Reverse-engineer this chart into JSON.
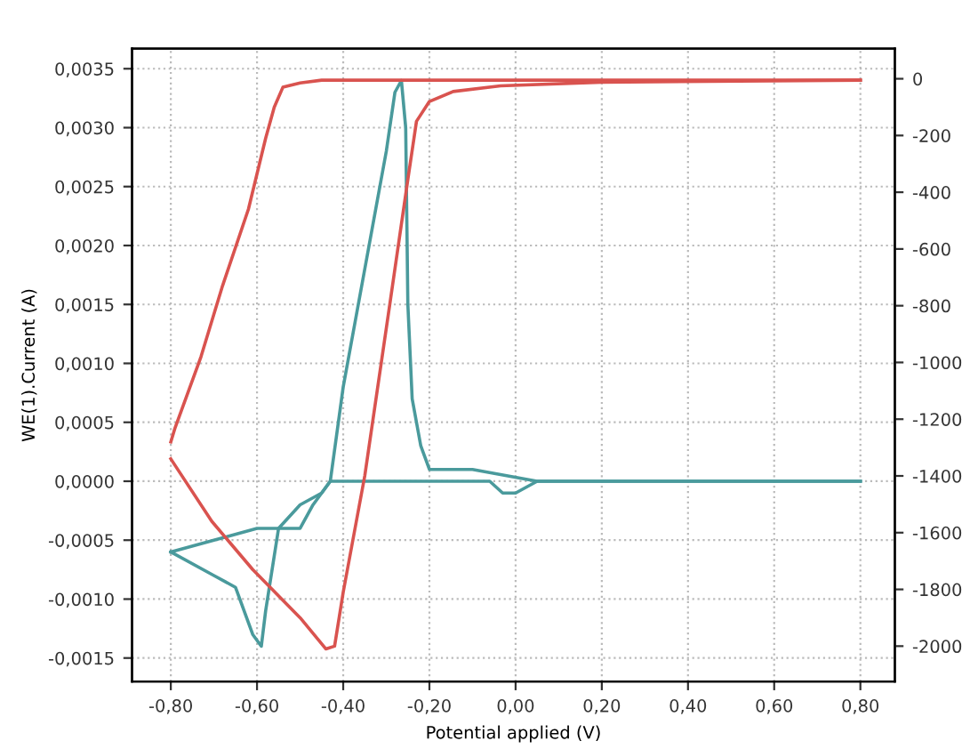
{
  "chart_data": {
    "type": "line",
    "xlabel": "Potential applied (V)",
    "ylabel": "WE(1).Current (A)",
    "xlim": [
      -0.89,
      0.88
    ],
    "ylim": [
      -0.0017,
      0.00367
    ],
    "y2lim": [
      -2125,
      106
    ],
    "xticks": [
      {
        "value": -0.8,
        "label": "-0,80"
      },
      {
        "value": -0.6,
        "label": "-0,60"
      },
      {
        "value": -0.4,
        "label": "-0,40"
      },
      {
        "value": -0.2,
        "label": "-0,20"
      },
      {
        "value": 0,
        "label": "0,00"
      },
      {
        "value": 0.2,
        "label": "0,20"
      },
      {
        "value": 0.4,
        "label": "0,40"
      },
      {
        "value": 0.6,
        "label": "0,60"
      },
      {
        "value": 0.8,
        "label": "0,80"
      }
    ],
    "yticks": [
      {
        "value": -0.0015,
        "label": "-0,0015"
      },
      {
        "value": -0.001,
        "label": "-0,0010"
      },
      {
        "value": -0.0005,
        "label": "-0,0005"
      },
      {
        "value": 0,
        "label": "0,0000"
      },
      {
        "value": 0.0005,
        "label": "0,0005"
      },
      {
        "value": 0.001,
        "label": "0,0010"
      },
      {
        "value": 0.0015,
        "label": "0,0015"
      },
      {
        "value": 0.002,
        "label": "0,0020"
      },
      {
        "value": 0.0025,
        "label": "0,0025"
      },
      {
        "value": 0.003,
        "label": "0,0030"
      },
      {
        "value": 0.0035,
        "label": "0,0035"
      }
    ],
    "y2ticks": [
      {
        "value": 0,
        "label": "0"
      },
      {
        "value": -200,
        "label": "-200"
      },
      {
        "value": -400,
        "label": "-400"
      },
      {
        "value": -600,
        "label": "-600"
      },
      {
        "value": -800,
        "label": "-800"
      },
      {
        "value": -1000,
        "label": "-1000"
      },
      {
        "value": -1200,
        "label": "-1200"
      },
      {
        "value": -1400,
        "label": "-1400"
      },
      {
        "value": -1600,
        "label": "-1600"
      },
      {
        "value": -1800,
        "label": "-1800"
      },
      {
        "value": -2000,
        "label": "-2000"
      }
    ],
    "grid": true,
    "marker": "none",
    "series": [
      {
        "color": "#d9534f",
        "axis": "y2",
        "x": [
          0.8,
          0.2,
          -0.2,
          -0.45,
          -0.5,
          -0.54,
          -0.56,
          -0.58,
          -0.62,
          -0.68,
          -0.73,
          -0.79,
          -0.8
        ],
        "values": [
          -5,
          -5,
          -5,
          -5,
          -15,
          -30,
          -100,
          -210,
          -460,
          -730,
          -980,
          -1230,
          -1280
        ]
      },
      {
        "color": "#d9534f",
        "axis": "y2",
        "x": [
          -0.8,
          -0.705,
          -0.61,
          -0.5,
          -0.44,
          -0.42,
          -0.4,
          -0.35,
          -0.29,
          -0.25,
          -0.23,
          -0.2,
          -0.145,
          -0.035,
          0.2,
          0.8
        ],
        "values": [
          -1340,
          -1560,
          -1730,
          -1900,
          -2010,
          -2000,
          -1810,
          -1400,
          -775,
          -355,
          -150,
          -80,
          -45,
          -25,
          -12,
          -5
        ]
      },
      {
        "color": "#4a9a9c",
        "x": [
          0.8,
          0.05,
          0.0,
          -0.03,
          -0.06,
          -0.43,
          -0.45,
          -0.5,
          -0.55,
          -0.58,
          -0.59,
          -0.61,
          -0.65,
          -0.7,
          -0.8
        ],
        "values": [
          0,
          0,
          -0.0001,
          -0.0001,
          0,
          0,
          -0.0001,
          -0.0002,
          -0.0004,
          -0.0011,
          -0.0014,
          -0.0013,
          -0.0009,
          -0.0008,
          -0.0006
        ]
      },
      {
        "color": "#4a9a9c",
        "x": [
          -0.8,
          -0.7,
          -0.6,
          -0.5,
          -0.47,
          -0.43,
          -0.4,
          -0.35,
          -0.3,
          -0.28,
          -0.265,
          -0.255,
          -0.25,
          -0.24,
          -0.22,
          -0.2,
          -0.1,
          0.05,
          0.8
        ],
        "values": [
          -0.0006,
          -0.0005,
          -0.0004,
          -0.0004,
          -0.0002,
          0,
          0.0008,
          0.0018,
          0.0028,
          0.0033,
          0.0034,
          0.003,
          0.0015,
          0.0007,
          0.0003,
          0.0001,
          0.0001,
          0,
          0
        ]
      }
    ]
  }
}
